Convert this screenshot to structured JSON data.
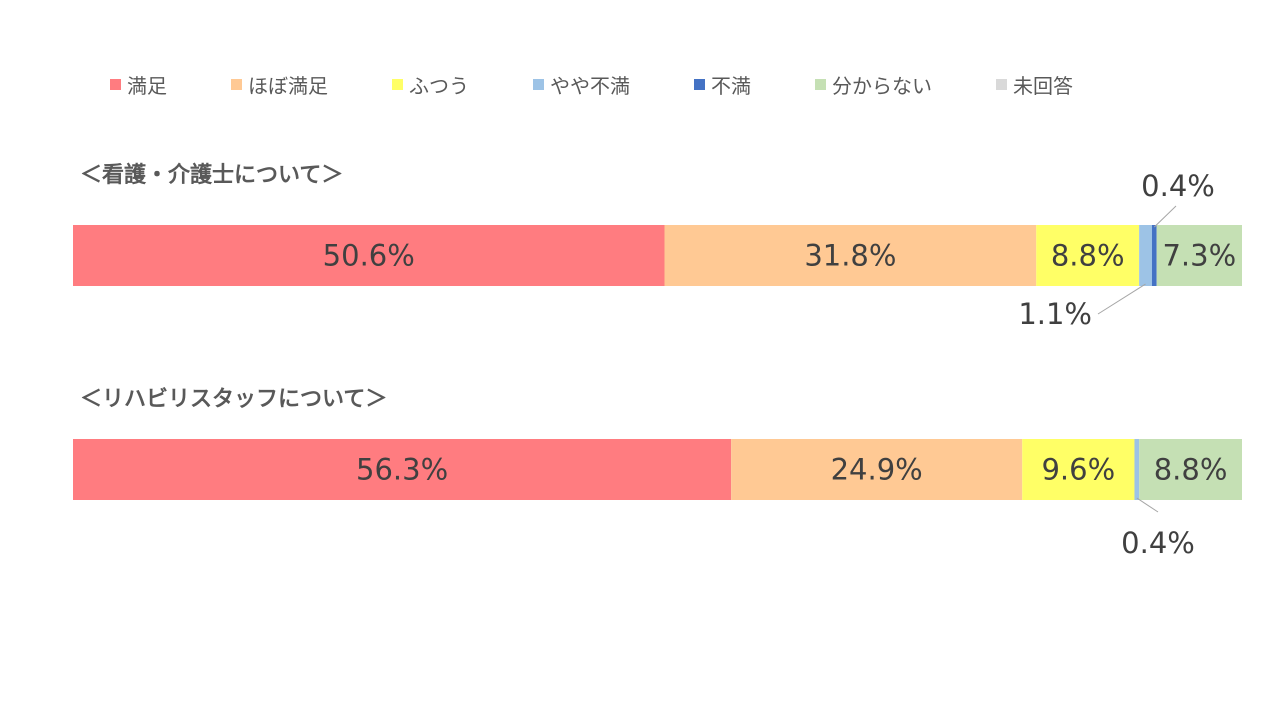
{
  "legend": [
    {
      "label": "満足",
      "color": "#FF7C80"
    },
    {
      "label": "ほぼ満足",
      "color": "#FFC994"
    },
    {
      "label": "ふつう",
      "color": "#FFFF66"
    },
    {
      "label": "やや不満",
      "color": "#9DC3E6"
    },
    {
      "label": "不満",
      "color": "#4472C4"
    },
    {
      "label": "分からない",
      "color": "#C5E0B4"
    },
    {
      "label": "未回答",
      "color": "#D9D9D9"
    }
  ],
  "sections": [
    {
      "title": "＜看護・介護士について＞"
    },
    {
      "title": "＜リハビリスタッフについて＞"
    }
  ],
  "chart_data": {
    "type": "bar",
    "orientation": "horizontal",
    "stacked": true,
    "percent_stacked": true,
    "series_names": [
      "満足",
      "ほぼ満足",
      "ふつう",
      "やや不満",
      "不満",
      "分からない",
      "未回答"
    ],
    "bars": [
      {
        "category": "＜看護・介護士について＞",
        "values": [
          50.6,
          31.8,
          8.8,
          1.1,
          0.4,
          7.3,
          0.0
        ],
        "labels": [
          "50.6%",
          "31.8%",
          "8.8%",
          "1.1%",
          "0.4%",
          "7.3%",
          ""
        ]
      },
      {
        "category": "＜リハビリスタッフについて＞",
        "values": [
          56.3,
          24.9,
          9.6,
          0.4,
          0.0,
          8.8,
          0.0
        ],
        "labels": [
          "56.3%",
          "24.9%",
          "9.6%",
          "0.4%",
          "",
          "8.8%",
          ""
        ]
      }
    ],
    "xlim": [
      0,
      100
    ],
    "grid": false,
    "legend_position": "top"
  }
}
